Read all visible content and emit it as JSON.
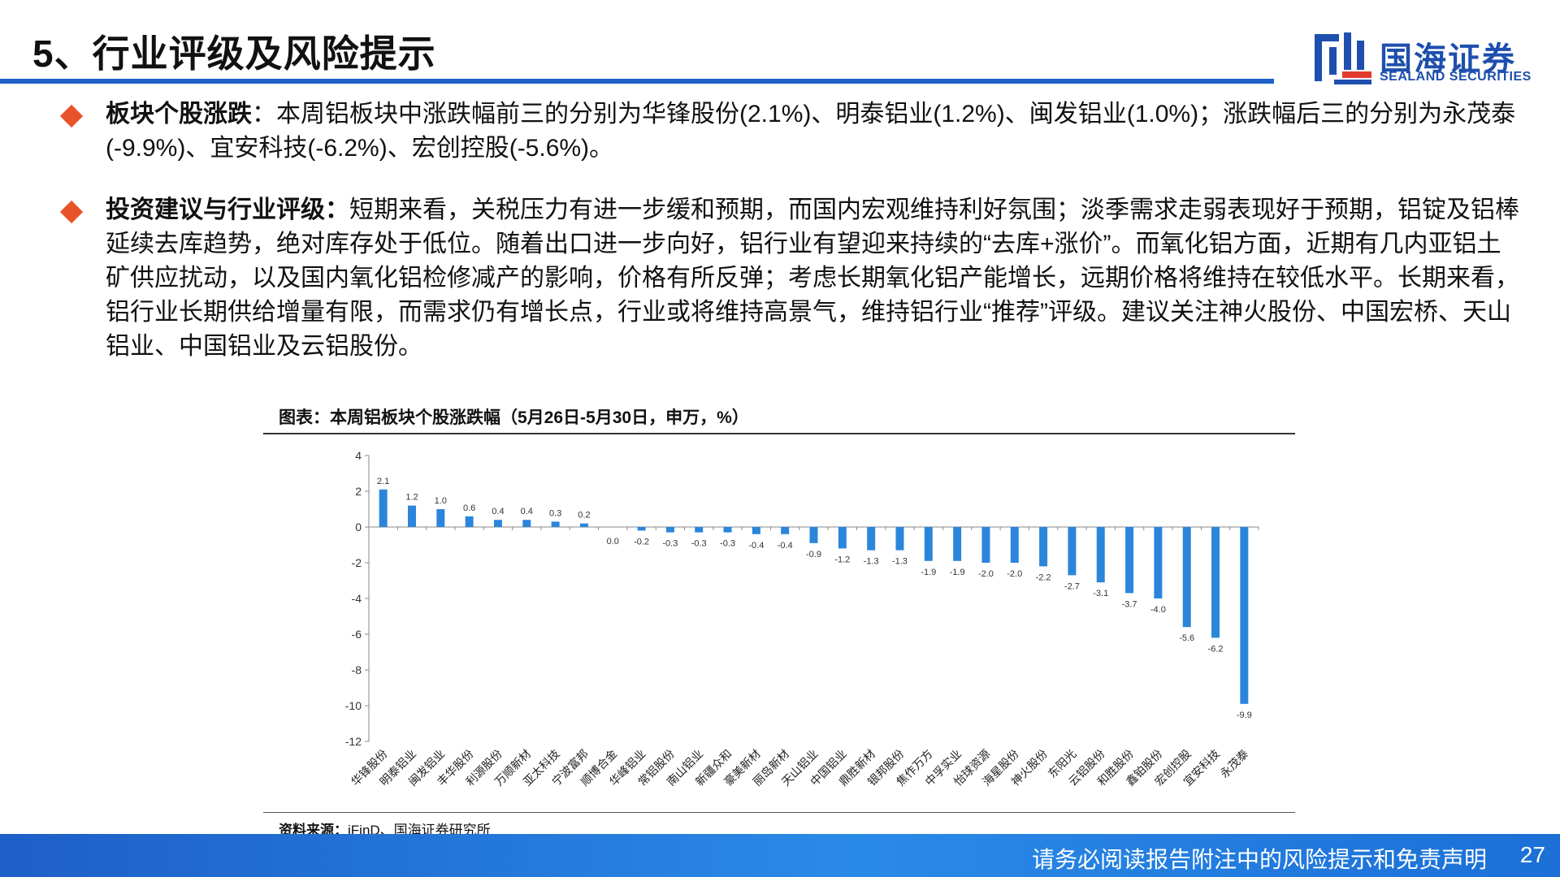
{
  "header": {
    "title": "5、行业评级及风险提示"
  },
  "logo": {
    "cn": "国海证券",
    "en": "SEALAND SECURITIES"
  },
  "bullets": [
    {
      "head": "板块个股涨跌",
      "body": "：本周铝板块中涨跌幅前三的分别为华锋股份(2.1%)、明泰铝业(1.2%)、闽发铝业(1.0%)；涨跌幅后三的分别为永茂泰(-9.9%)、宜安科技(-6.2%)、宏创控股(-5.6%)。"
    },
    {
      "head": "投资建议与行业评级：",
      "body": "短期来看，关税压力有进一步缓和预期，而国内宏观维持利好氛围；淡季需求走弱表现好于预期，铝锭及铝棒延续去库趋势，绝对库存处于低位。随着出口进一步向好，铝行业有望迎来持续的“去库+涨价”。而氧化铝方面，近期有几内亚铝土矿供应扰动，以及国内氧化铝检修减产的影响，价格有所反弹；考虑长期氧化铝产能增长，远期价格将维持在较低水平。长期来看，铝行业长期供给增量有限，而需求仍有增长点，行业或将维持高景气，维持铝行业“推荐”评级。建议关注神火股份、中国宏桥、天山铝业、中国铝业及云铝股份。"
    }
  ],
  "chart_title": "图表：本周铝板块个股涨跌幅（5月26日-5月30日，申万，%）",
  "chart_data": {
    "type": "bar",
    "title": "图表：本周铝板块个股涨跌幅（5月26日-5月30日，申万，%）",
    "categories": [
      "华锋股份",
      "明泰铝业",
      "闽发铝业",
      "丰华股份",
      "利源股份",
      "万顺新材",
      "亚太科技",
      "宁波富邦",
      "顺博合金",
      "华峰铝业",
      "常铝股份",
      "南山铝业",
      "新疆众和",
      "豪美新材",
      "丽岛新材",
      "天山铝业",
      "中国铝业",
      "鼎胜新材",
      "银邦股份",
      "焦作万方",
      "中孚实业",
      "怡球资源",
      "海星股份",
      "神火股份",
      "东阳光",
      "云铝股份",
      "和胜股份",
      "鑫铂股份",
      "宏创控股",
      "宜安科技",
      "永茂泰"
    ],
    "values": [
      2.1,
      1.2,
      1.0,
      0.6,
      0.4,
      0.4,
      0.3,
      0.2,
      0.0,
      -0.2,
      -0.3,
      -0.3,
      -0.3,
      -0.4,
      -0.4,
      -0.9,
      -1.2,
      -1.3,
      -1.3,
      -1.9,
      -1.9,
      -2.0,
      -2.0,
      -2.2,
      -2.7,
      -3.1,
      -3.7,
      -4.0,
      -5.6,
      -6.2,
      -9.9
    ],
    "ylim": [
      -12,
      4
    ],
    "yticks": [
      4,
      2,
      0,
      -2,
      -4,
      -6,
      -8,
      -10,
      -12
    ],
    "bar_color": "#2b86db",
    "grid": false,
    "legend": "none"
  },
  "source": {
    "label": "资料来源：",
    "text": "iFinD、国海证券研究所"
  },
  "footer": {
    "disclaimer": "请务必阅读报告附注中的风险提示和免责声明",
    "page": "27"
  }
}
